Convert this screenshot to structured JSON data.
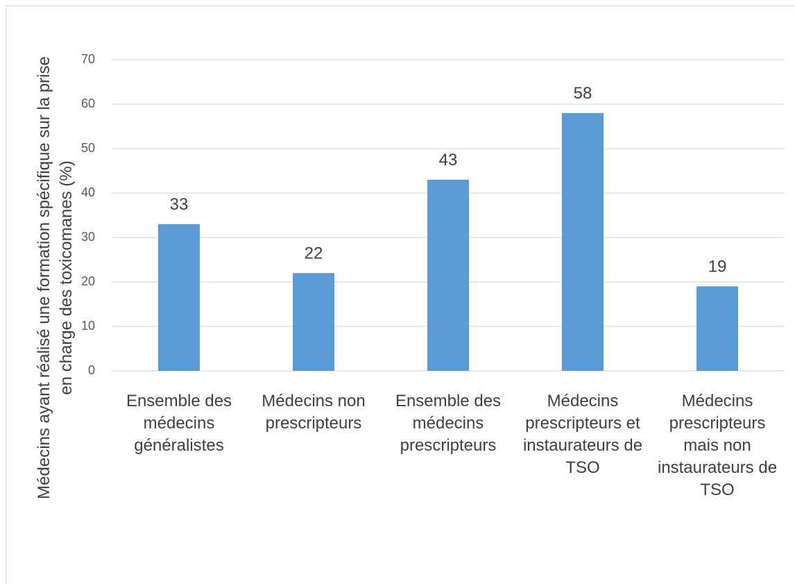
{
  "chart_data": {
    "type": "bar",
    "y_axis_label": "Médecins ayant réalisé une formation spécifique sur la prise en charge des toxicomanes (%)",
    "categories": [
      "Ensemble des médecins généralistes",
      "Médecins non prescripteurs",
      "Ensemble des médecins prescripteurs",
      "Médecins prescripteurs et instaurateurs de TSO",
      "Médecins prescripteurs mais non instaurateurs de TSO"
    ],
    "values": [
      33,
      22,
      43,
      58,
      19
    ],
    "color": "#5b9bd5",
    "ylim": [
      0,
      70
    ],
    "yticks": [
      0,
      10,
      20,
      30,
      40,
      50,
      60,
      70
    ],
    "grid": true
  }
}
